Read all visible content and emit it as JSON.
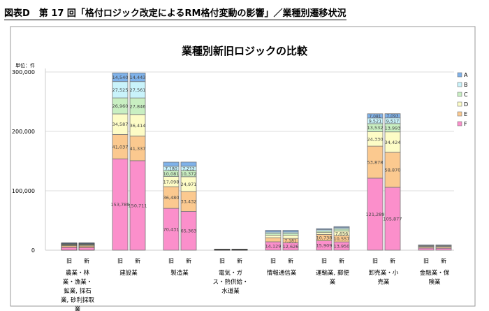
{
  "header": "図表D　第 17 回「格付ロジック改定によるRM格付変動の影響」／業種別遷移状況",
  "chart_data": {
    "type": "bar",
    "stacked": true,
    "title": "業種別新旧ロジックの比較",
    "unit_label": "単位：件",
    "ylim": [
      0,
      300000
    ],
    "yticks": [
      0,
      100000,
      200000,
      300000
    ],
    "ytick_labels": [
      "0",
      "100,000",
      "200,000",
      "300,000"
    ],
    "grid": true,
    "legend_position": "right",
    "series_names": [
      "A",
      "B",
      "C",
      "D",
      "E",
      "F"
    ],
    "colors": {
      "A": "#7fb2ea",
      "B": "#c9f3fb",
      "C": "#c9efc2",
      "D": "#fdfcc6",
      "E": "#fbc98f",
      "F": "#fb8fcb"
    },
    "bar_labels": [
      "旧",
      "新"
    ],
    "categories": [
      {
        "name": [
          "農業・林",
          "業・漁業・",
          "鉱業, 採石",
          "業, 砂利採取",
          "業"
        ],
        "old": {
          "F": 5000,
          "E": 2500,
          "D": 1800,
          "C": 1000,
          "B": 700,
          "A": 1300
        },
        "new": {
          "F": 4600,
          "E": 2700,
          "D": 2000,
          "C": 1000,
          "B": 700,
          "A": 1300
        },
        "labeled": false
      },
      {
        "name": [
          "建設業"
        ],
        "old": {
          "F": 153789,
          "E": 41037,
          "D": 34587,
          "C": 26960,
          "B": 27525,
          "A": 14540
        },
        "new": {
          "F": 150711,
          "E": 41337,
          "D": 36414,
          "C": 27846,
          "B": 27561,
          "A": 14443
        },
        "labeled": true
      },
      {
        "name": [
          "製造業"
        ],
        "old": {
          "F": 70431,
          "E": 36480,
          "D": 17098,
          "C": 10081,
          "B": 7180,
          "A": 6956
        },
        "new": {
          "F": 65363,
          "E": 33432,
          "D": 24971,
          "C": 10372,
          "B": 7212,
          "A": 6969
        },
        "labeled": true
      },
      {
        "name": [
          "電気・ガ",
          "ス・熱供給・",
          "水道業"
        ],
        "old": {
          "F": 500,
          "E": 300,
          "D": 300,
          "C": 200,
          "B": 200,
          "A": 300
        },
        "new": {
          "F": 500,
          "E": 300,
          "D": 300,
          "C": 200,
          "B": 200,
          "A": 300
        },
        "labeled": false
      },
      {
        "name": [
          "情報通信業"
        ],
        "old": {
          "F": 14129,
          "E": 6915,
          "D": 4363,
          "C": 2909,
          "B": 2400,
          "A": 2711
        },
        "new": {
          "F": 12626,
          "E": 7181,
          "D": 5474,
          "C": 3052,
          "B": 2402,
          "A": 2718
        },
        "labeled": true
      },
      {
        "name": [
          "運輸業, 郵便",
          "業"
        ],
        "old": {
          "F": 15909,
          "E": 10738,
          "D": 3224,
          "C": 2320,
          "B": 2350,
          "A": 1751
        },
        "new": {
          "F": 13950,
          "E": 10557,
          "D": 7656,
          "C": 3442,
          "B": 2318,
          "A": 1765
        },
        "labeled": true
      },
      {
        "name": [
          "卸売業・小",
          "売業"
        ],
        "old": {
          "F": 121289,
          "E": 53878,
          "D": 24330,
          "C": 13532,
          "B": 9521,
          "A": 7081
        },
        "new": {
          "F": 105877,
          "E": 58870,
          "D": 34424,
          "C": 13993,
          "B": 9517,
          "A": 7093
        },
        "labeled": true
      },
      {
        "name": [
          "金融業・保",
          "険業"
        ],
        "old": {
          "F": 3500,
          "E": 1800,
          "D": 1200,
          "C": 700,
          "B": 600,
          "A": 1200
        },
        "new": {
          "F": 3300,
          "E": 1900,
          "D": 1300,
          "C": 700,
          "B": 600,
          "A": 1200
        },
        "labeled": true
      }
    ]
  }
}
